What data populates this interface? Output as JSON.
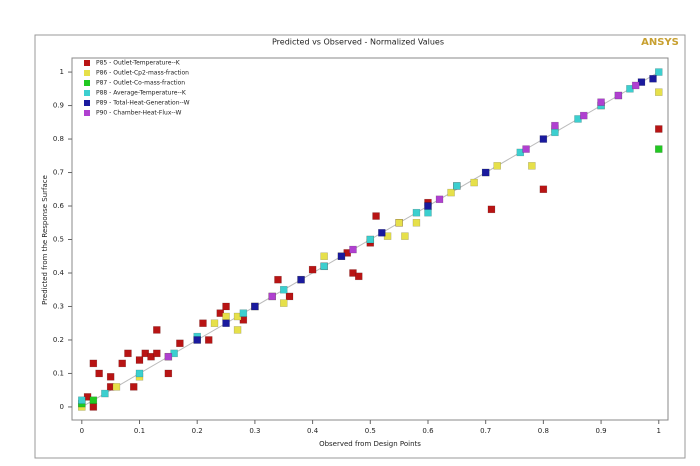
{
  "chart_data": {
    "type": "scatter",
    "title": "Predicted vs Observed - Normalized Values",
    "logo": "ANSYS",
    "xlabel": "Observed from Design Points",
    "ylabel": "Predicted from the Response Surface",
    "xlim": [
      -0.017,
      1.016
    ],
    "ylim": [
      -0.039,
      1.042
    ],
    "xticks": [
      0,
      0.1,
      0.2,
      0.3,
      0.4,
      0.5,
      0.6,
      0.7,
      0.8,
      0.9,
      1
    ],
    "yticks": [
      0,
      0.1,
      0.2,
      0.3,
      0.4,
      0.5,
      0.6,
      0.7,
      0.8,
      0.9,
      1
    ],
    "grid": false,
    "legend": "upper left",
    "series": [
      {
        "name": "P85 - Outlet-Temperature--K",
        "color": "#b81414",
        "x": [
          0.02,
          0.03,
          0.05,
          0.07,
          0.08,
          0.1,
          0.11,
          0.12,
          0.13,
          0.13,
          0.15,
          0.17,
          0.21,
          0.22,
          0.24,
          0.25,
          0.28,
          0.3,
          0.34,
          0.36,
          0.4,
          0.46,
          0.47,
          0.48,
          0.5,
          0.51,
          0.55,
          0.6,
          0.65,
          0.71,
          0.8,
          1,
          0.01,
          0.02,
          0.05,
          0.09,
          0.42
        ],
        "y": [
          0.13,
          0.1,
          0.09,
          0.13,
          0.16,
          0.14,
          0.16,
          0.15,
          0.23,
          0.16,
          0.1,
          0.19,
          0.25,
          0.2,
          0.28,
          0.3,
          0.26,
          0.3,
          0.38,
          0.33,
          0.41,
          0.46,
          0.4,
          0.39,
          0.49,
          0.57,
          0.55,
          0.61,
          0.66,
          0.59,
          0.65,
          0.83,
          0.03,
          0,
          0.06,
          0.06,
          0.42
        ]
      },
      {
        "name": "P86 - Outlet-Cp2-mass-fraction",
        "color": "#e6e04a",
        "x": [
          0,
          0.06,
          0.1,
          0.15,
          0.2,
          0.23,
          0.25,
          0.27,
          0.3,
          0.33,
          0.35,
          0.38,
          0.42,
          0.45,
          0.5,
          0.53,
          0.55,
          0.58,
          0.6,
          0.64,
          0.68,
          0.72,
          0.78,
          0.82,
          0.9,
          1,
          0.27,
          0.56
        ],
        "y": [
          0,
          0.06,
          0.09,
          0.15,
          0.2,
          0.25,
          0.27,
          0.23,
          0.3,
          0.33,
          0.31,
          0.38,
          0.45,
          0.45,
          0.5,
          0.51,
          0.55,
          0.55,
          0.6,
          0.64,
          0.67,
          0.72,
          0.72,
          0.83,
          0.9,
          0.94,
          0.27,
          0.51
        ]
      },
      {
        "name": "P87 - Outlet-Co-mass-fraction",
        "color": "#22c822",
        "x": [
          0,
          0.02,
          1
        ],
        "y": [
          0.01,
          0.02,
          0.77
        ]
      },
      {
        "name": "P88 - Average-Temperature--K",
        "color": "#3ccfcf",
        "x": [
          0,
          0.04,
          0.1,
          0.2,
          0.28,
          0.35,
          0.42,
          0.5,
          0.58,
          0.65,
          0.7,
          0.76,
          0.82,
          0.86,
          0.9,
          0.93,
          0.95,
          1,
          0.16,
          0.6
        ],
        "y": [
          0.02,
          0.04,
          0.1,
          0.21,
          0.28,
          0.35,
          0.42,
          0.5,
          0.58,
          0.66,
          0.7,
          0.76,
          0.82,
          0.86,
          0.9,
          0.93,
          0.95,
          1,
          0.16,
          0.58
        ]
      },
      {
        "name": "P89 - Total-Heat-Generation--W",
        "color": "#1a1a9e",
        "x": [
          0.2,
          0.25,
          0.3,
          0.38,
          0.45,
          0.52,
          0.6,
          0.7,
          0.8,
          0.97,
          0.99
        ],
        "y": [
          0.2,
          0.25,
          0.3,
          0.38,
          0.45,
          0.52,
          0.6,
          0.7,
          0.8,
          0.97,
          0.98
        ]
      },
      {
        "name": "P90 - Chamber-Heat-Flux--W",
        "color": "#b040d0",
        "x": [
          0.15,
          0.33,
          0.47,
          0.62,
          0.77,
          0.82,
          0.87,
          0.93,
          0.96,
          0.9
        ],
        "y": [
          0.15,
          0.33,
          0.47,
          0.62,
          0.77,
          0.84,
          0.87,
          0.93,
          0.96,
          0.91
        ]
      }
    ]
  }
}
